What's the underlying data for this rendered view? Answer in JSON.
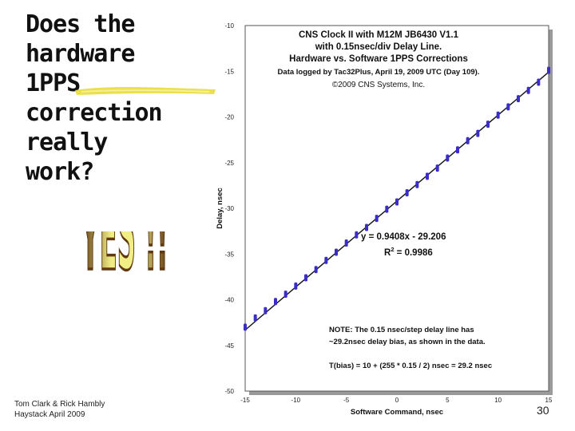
{
  "slide": {
    "title_lines": [
      "Does the",
      "hardware",
      "1PPS",
      "correction",
      "really",
      "work?"
    ],
    "wordart_text": "YES !!",
    "footer_line1": "Tom Clark & Rick Hambly",
    "footer_line2": "Haystack    April 2009",
    "slide_number": "30"
  },
  "colors": {
    "background": "#ffffff",
    "title_text": "#111111",
    "highlight_yellow": "#e8dc3a",
    "wordart_gold": "#f2ee86",
    "wordart_brown": "#5e3912",
    "point_color": "#3b2ec8",
    "fit_line": "#111111"
  },
  "chart_data": {
    "type": "scatter",
    "title_lines": [
      "CNS Clock II with M12M JB6430 V1.1",
      "with 0.15nsec/div Delay Line.",
      "Hardware vs. Software 1PPS Corrections",
      "Data logged by Tac32Plus, April 19, 2009 UTC (Day 109).",
      "©2009 CNS Systems, Inc."
    ],
    "xlabel": "Software Command, nsec",
    "ylabel": "Delay, nsec",
    "xlim": [
      -15,
      15
    ],
    "ylim": [
      -50,
      -10
    ],
    "x_ticks": [
      "-15",
      "-10",
      "-5",
      "0",
      "5",
      "10",
      "15"
    ],
    "y_ticks": [
      "-10",
      "-15",
      "-20",
      "-25",
      "-30",
      "-35",
      "-40",
      "-45",
      "-50"
    ],
    "grid": false,
    "fit": {
      "slope": 0.9408,
      "intercept": -29.206,
      "label": "y = 0.9408x - 29.206",
      "r2_label": "R",
      "r2_sup": "2",
      "r2_value": " = 0.9986"
    },
    "note_lines": [
      "NOTE: The 0.15 nsec/step delay line has",
      "~29.2nsec delay bias, as shown in the data.",
      "",
      "T(bias) = 10 + (255 * 0.15 / 2) nsec = 29.2 nsec"
    ],
    "series": [
      {
        "x": [
          -15,
          -14,
          -13,
          -12,
          -11,
          -10,
          -9,
          -8,
          -7,
          -6,
          -5,
          -4,
          -3,
          -2,
          -1,
          0,
          1,
          2,
          3,
          4,
          5,
          6,
          7,
          8,
          9,
          10,
          11,
          12,
          13,
          14,
          15
        ],
        "y": [
          -43.0,
          -42.0,
          -41.2,
          -40.2,
          -39.4,
          -38.5,
          -37.6,
          -36.7,
          -35.7,
          -34.8,
          -33.8,
          -32.9,
          -32.1,
          -31.1,
          -30.1,
          -29.3,
          -28.3,
          -27.4,
          -26.5,
          -25.6,
          -24.5,
          -23.6,
          -22.6,
          -21.8,
          -20.8,
          -19.8,
          -18.9,
          -18.0,
          -17.1,
          -16.2,
          -14.9
        ]
      }
    ]
  }
}
